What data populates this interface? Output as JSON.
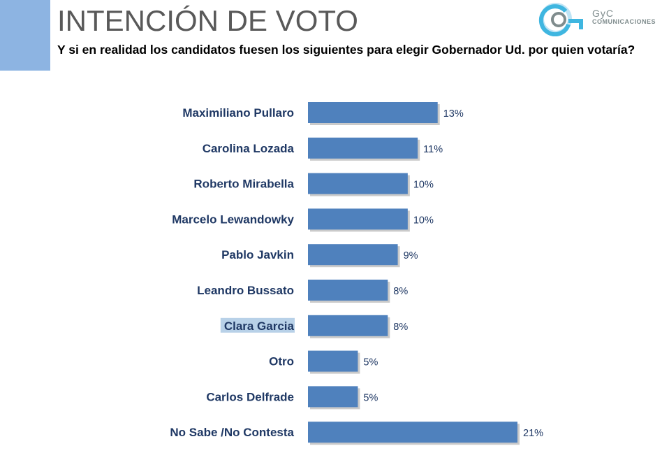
{
  "header": {
    "title": "INTENCIÓN DE VOTO",
    "subtitle": "Y si en realidad los candidatos fuesen los siguientes para elegir Gobernador Ud. por quien votaría?",
    "logo_brand": "GyC",
    "logo_sub": "COMUNICACIONES"
  },
  "colors": {
    "bar": "#4f81bd",
    "bar_shadow": "#a6a6a6",
    "label": "#1f3864",
    "accent_block": "#8db4e2",
    "highlight": "#b8d1e8"
  },
  "chart_data": {
    "type": "bar",
    "orientation": "horizontal",
    "categories": [
      "Maximiliano Pullaro",
      "Carolina Lozada",
      "Roberto Mirabella",
      "Marcelo Lewandowky",
      "Pablo Javkin",
      "Leandro Bussato",
      "Clara Garcia",
      "Otro",
      "Carlos Delfrade",
      "No Sabe /No Contesta"
    ],
    "values": [
      13,
      11,
      10,
      10,
      9,
      8,
      8,
      5,
      5,
      21
    ],
    "value_labels": [
      "13%",
      "11%",
      "10%",
      "10%",
      "9%",
      "8%",
      "8%",
      "5%",
      "5%",
      "21%"
    ],
    "highlighted_category": "Clara Garcia",
    "xlim": [
      0,
      21
    ],
    "grid": false,
    "legend": "none"
  }
}
